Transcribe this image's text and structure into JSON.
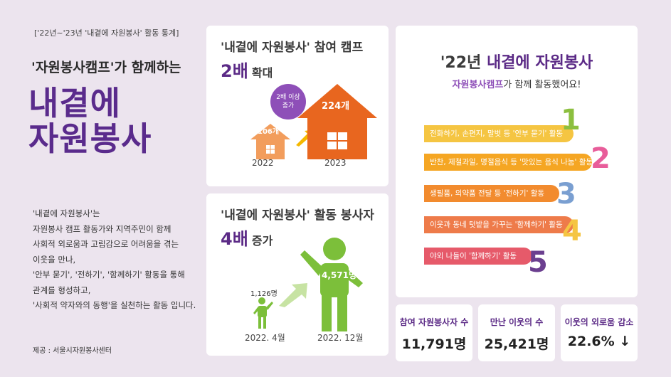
{
  "left": {
    "top_note": "['22년~'23년 '내곁에 자원봉사' 활동 통계]",
    "subtitle": "'자원봉사캠프'가 함께하는",
    "title_line1": "내곁에",
    "title_line2": "자원봉사",
    "description": [
      "'내곁에 자원봉사'는",
      "자원봉사 캠프 활동가와 지역주민이 함께",
      "사회적 외로움과 고립감으로 어려움을 겪는",
      "이웃을 만나,",
      "'안부 묻기', '전하기', '함께하기' 활동을 통해",
      "관계를 형성하고,",
      "'사회적 약자와의 동행'을 실천하는 활동 입니다."
    ],
    "source": "제공 : 서울시자원봉사센터"
  },
  "camp_card": {
    "title": "'내곁에 자원봉사' 참여 캠프",
    "big": "2배",
    "suffix": "확대",
    "badge_line1": "2배 이상",
    "badge_line2": "증가",
    "small_value": "106개",
    "large_value": "224개",
    "small_year": "2022",
    "large_year": "2023",
    "colors": {
      "small_house": "#f29d5c",
      "large_house": "#e8661f",
      "badge": "#8e4fb8"
    }
  },
  "volunteer_card": {
    "title": "'내곁에 자원봉사' 활동 봉사자",
    "big": "4배",
    "suffix": "증가",
    "small_value": "1,126명",
    "large_value": "4,571명",
    "small_date": "2022. 4월",
    "large_date": "2022. 12월",
    "colors": {
      "person": "#7cbf3a",
      "arrow": "#c7e3a3"
    }
  },
  "activity_card": {
    "title_year": "'22년",
    "title_rest": "내곁에 자원봉사",
    "subtitle_strong": "자원봉사캠프",
    "subtitle_rest": "가 함께 활동했어요!",
    "steps": [
      {
        "num": "1",
        "text": "전화하기, 손편지, 말벗 등 '안부 묻기' 활동",
        "color": "#f5c542",
        "numcolor": "#8cbf3f"
      },
      {
        "num": "2",
        "text": "반찬, 제철과일, 명절음식 등 '맛있는 음식 나눔' 활동",
        "color": "#f5a623",
        "numcolor": "#e85d9a"
      },
      {
        "num": "3",
        "text": "생필품, 의약품 전달 등 '전하기' 활동",
        "color": "#f28b2e",
        "numcolor": "#7a9fd1"
      },
      {
        "num": "4",
        "text": "이웃과 동네 텃밭을 가꾸는 '함께하기' 활동",
        "color": "#ee7b4a",
        "numcolor": "#f5c542"
      },
      {
        "num": "5",
        "text": "야외 나들이 '함께하기' 활동",
        "color": "#e65a6a",
        "numcolor": "#6b3f8f"
      }
    ]
  },
  "stats": [
    {
      "label": "참여 자원봉사자 수",
      "value": "11,791명"
    },
    {
      "label": "만난 이웃의 수",
      "value": "25,421명"
    },
    {
      "label": "이웃의 외로움 감소",
      "value": "22.6% ↓"
    }
  ]
}
